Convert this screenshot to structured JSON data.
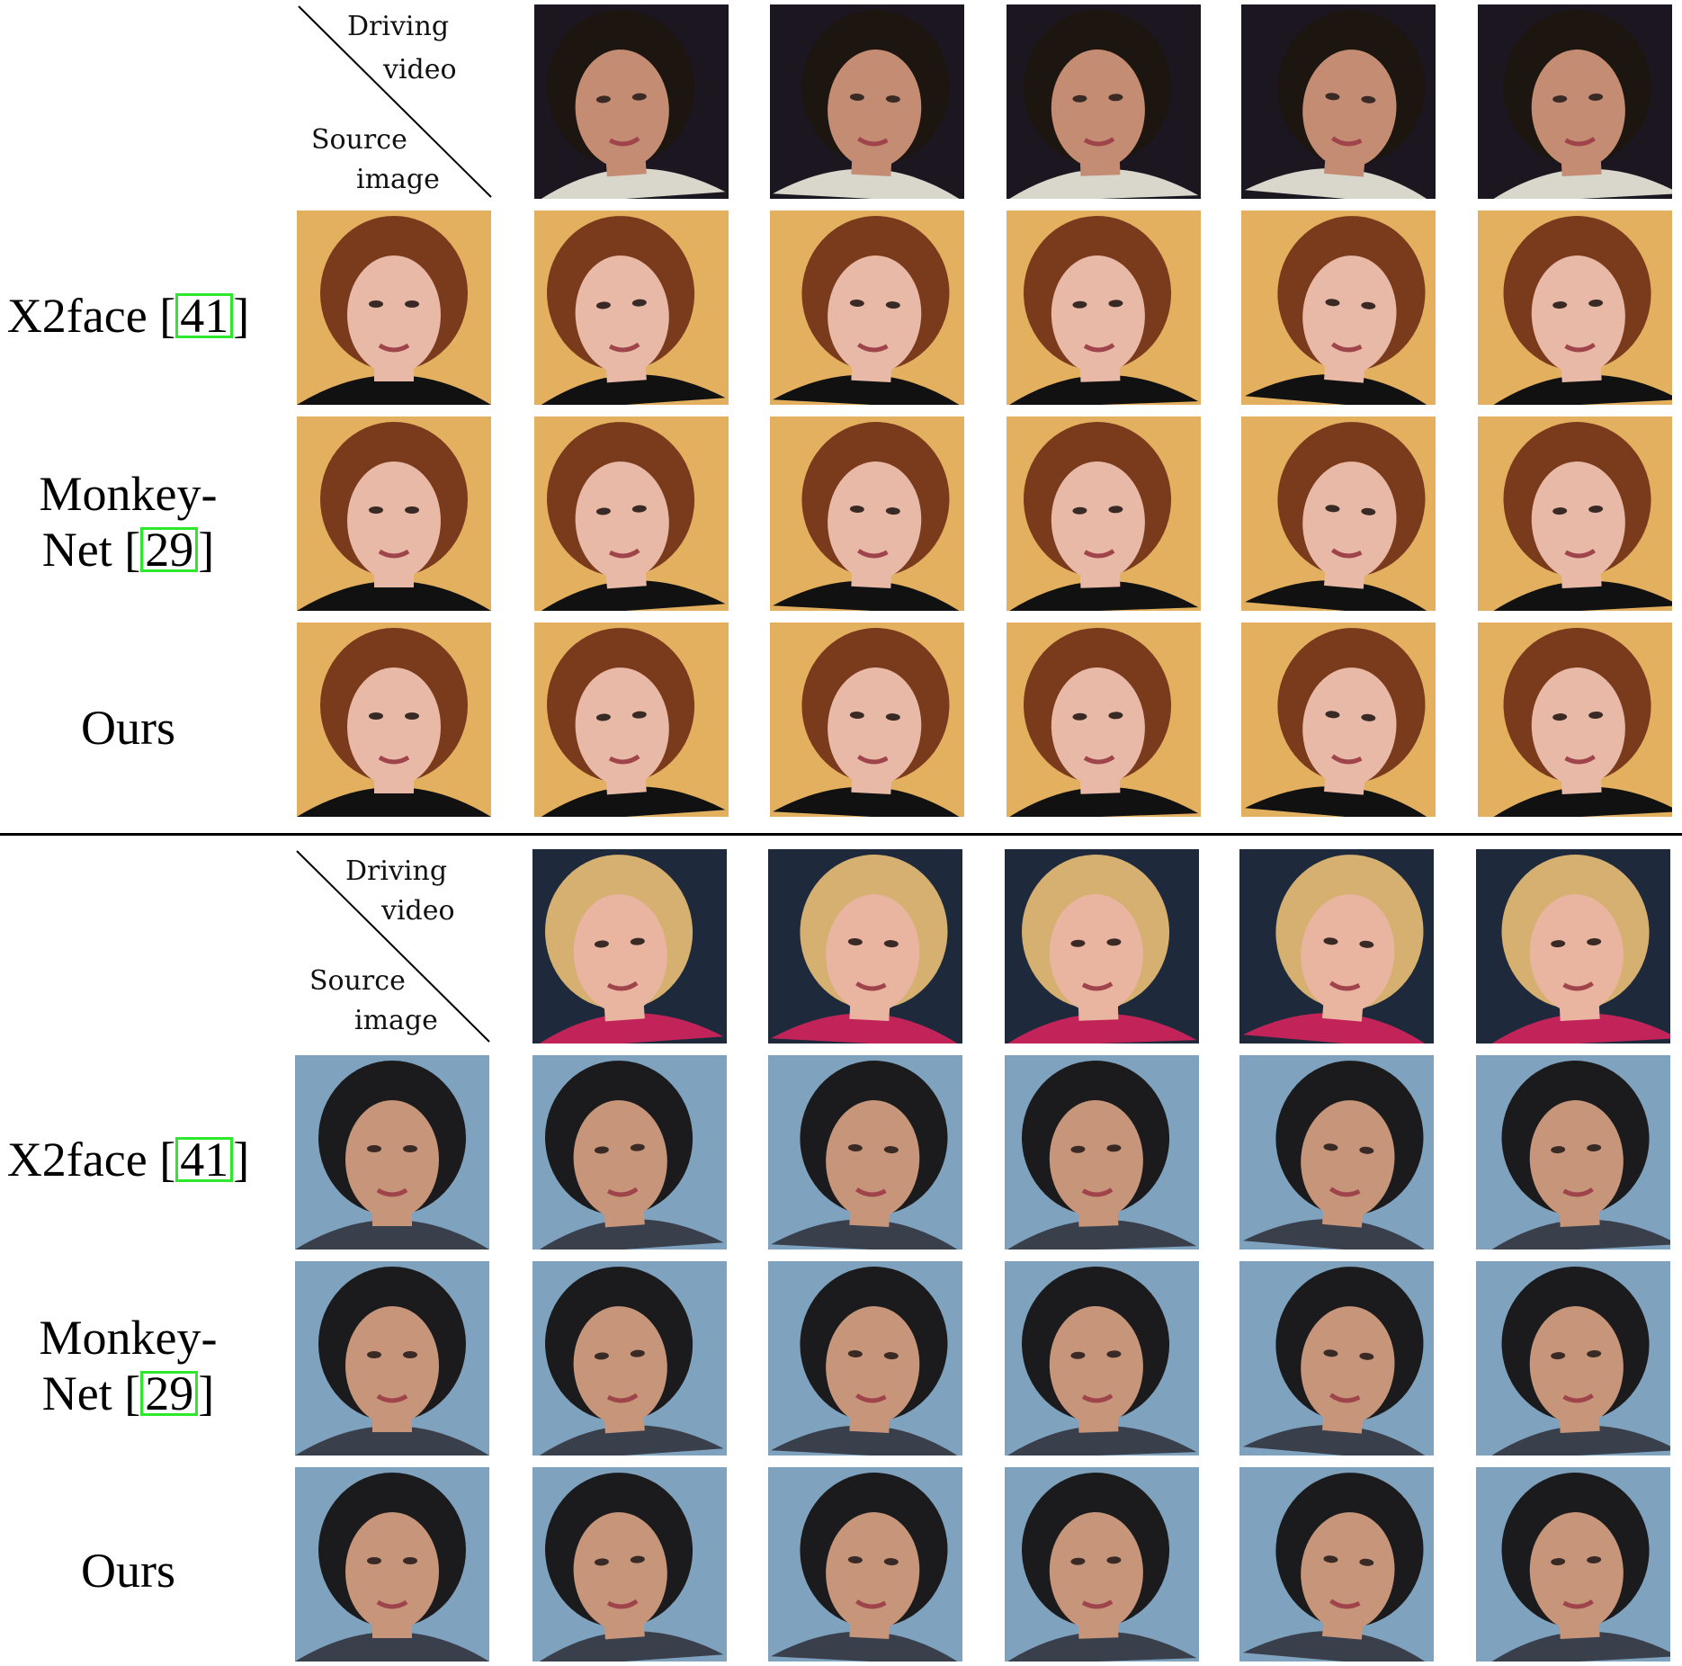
{
  "header": {
    "driving": "Driving",
    "video": "video",
    "source": "Source",
    "image": "image"
  },
  "blocks": [
    {
      "rows": [
        {
          "name": "X2face [",
          "ref": "41",
          "close": "]"
        },
        {
          "name": "Monkey-",
          "name2": "Net [",
          "ref": "29",
          "close": "]"
        },
        {
          "name": "Ours"
        }
      ],
      "driver": {
        "hair": "#1c1510",
        "skin": "#c48c72",
        "bg": "#1b1620",
        "shirt": "#d9d6cc"
      },
      "subject": {
        "hair": "#7a3a1c",
        "skin": "#e7b9a6",
        "bg": "#e3b060",
        "shirt": "#111111"
      }
    },
    {
      "rows": [
        {
          "name": "X2face [",
          "ref": "41",
          "close": "]"
        },
        {
          "name": "Monkey-",
          "name2": "Net [",
          "ref": "29",
          "close": "]"
        },
        {
          "name": "Ours"
        }
      ],
      "driver": {
        "hair": "#d6b070",
        "skin": "#e9b4a0",
        "bg": "#1e2a3c",
        "shirt": "#c2245a"
      },
      "subject": {
        "hair": "#1b1b1d",
        "skin": "#c6957a",
        "bg": "#7fa3bf",
        "shirt": "#3a3f4c"
      }
    }
  ],
  "colors": {
    "ref_box": "#2ee82e",
    "divider": "#000000"
  }
}
